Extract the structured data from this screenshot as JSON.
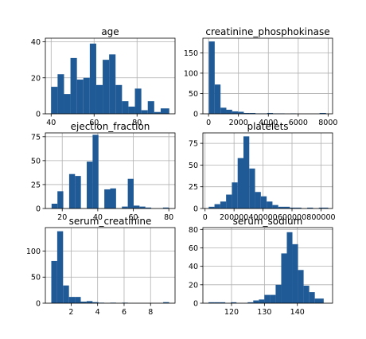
{
  "chart_data": [
    {
      "type": "bar",
      "title": "age",
      "xlabel": "",
      "ylabel": "",
      "bar_color": "#1f5a96",
      "grid": true,
      "xlim": [
        37.3,
        97.7
      ],
      "ylim": [
        0,
        42
      ],
      "xticks": [
        40,
        60,
        80
      ],
      "yticks": [
        0,
        20,
        40
      ],
      "bins": [
        [
          40,
          43,
          15
        ],
        [
          43,
          46,
          22
        ],
        [
          46,
          49,
          11
        ],
        [
          49,
          52,
          31
        ],
        [
          52,
          55,
          19
        ],
        [
          55,
          58,
          20
        ],
        [
          58,
          61,
          39
        ],
        [
          61,
          64,
          16
        ],
        [
          64,
          67,
          30
        ],
        [
          67,
          70,
          33
        ],
        [
          70,
          73,
          16
        ],
        [
          73,
          76,
          7
        ],
        [
          76,
          79,
          4
        ],
        [
          79,
          82,
          14
        ],
        [
          82,
          85,
          2
        ],
        [
          85,
          88,
          7
        ],
        [
          88,
          91,
          1
        ],
        [
          91,
          95,
          3
        ]
      ]
    },
    {
      "type": "bar",
      "title": "creatinine_phosphokinase",
      "xlabel": "",
      "ylabel": "",
      "bar_color": "#1f5a96",
      "grid": true,
      "xlim": [
        -380,
        8300
      ],
      "ylim": [
        0,
        186
      ],
      "xticks": [
        0,
        2000,
        4000,
        6000,
        8000
      ],
      "yticks": [
        0,
        50,
        100,
        150
      ],
      "bins": [
        [
          20,
          410,
          178
        ],
        [
          410,
          800,
          72
        ],
        [
          800,
          1190,
          15
        ],
        [
          1190,
          1580,
          10
        ],
        [
          1580,
          1970,
          6
        ],
        [
          1970,
          2360,
          5
        ],
        [
          2360,
          2750,
          2
        ],
        [
          2750,
          3140,
          2
        ],
        [
          3140,
          3530,
          1
        ],
        [
          3530,
          3920,
          1
        ],
        [
          3920,
          4310,
          2
        ],
        [
          4310,
          4700,
          1
        ],
        [
          4700,
          5090,
          1
        ],
        [
          5090,
          5480,
          0
        ],
        [
          5480,
          5870,
          1
        ],
        [
          5870,
          6260,
          0
        ],
        [
          6260,
          6650,
          0
        ],
        [
          6650,
          7040,
          0
        ],
        [
          7040,
          7430,
          0
        ],
        [
          7430,
          7861,
          2
        ]
      ]
    },
    {
      "type": "bar",
      "title": "ejection_fraction",
      "xlabel": "",
      "ylabel": "",
      "bar_color": "#1f5a96",
      "grid": true,
      "xlim": [
        10.5,
        83.5
      ],
      "ylim": [
        0,
        79
      ],
      "xticks": [
        20,
        40,
        60,
        80
      ],
      "yticks": [
        0,
        25,
        50,
        75
      ],
      "bins": [
        [
          14,
          17.3,
          5
        ],
        [
          17.3,
          20.6,
          18
        ],
        [
          20.6,
          23.9,
          0
        ],
        [
          23.9,
          27.2,
          36
        ],
        [
          27.2,
          30.5,
          34
        ],
        [
          30.5,
          33.8,
          0
        ],
        [
          33.8,
          37.1,
          49
        ],
        [
          37.1,
          40.4,
          77
        ],
        [
          40.4,
          43.7,
          0
        ],
        [
          43.7,
          47,
          20
        ],
        [
          47,
          50.3,
          21
        ],
        [
          50.3,
          53.6,
          0
        ],
        [
          53.6,
          56.9,
          2
        ],
        [
          56.9,
          60.2,
          31
        ],
        [
          60.2,
          63.5,
          3
        ],
        [
          63.5,
          66.8,
          2
        ],
        [
          66.8,
          70.1,
          1
        ],
        [
          70.1,
          73.4,
          0
        ],
        [
          73.4,
          76.7,
          0
        ],
        [
          76.7,
          80,
          1
        ]
      ]
    },
    {
      "type": "bar",
      "title": "platelets",
      "xlabel": "",
      "ylabel": "",
      "bar_color": "#1f5a96",
      "grid": true,
      "xlim": [
        -15000,
        880000
      ],
      "ylim": [
        0,
        87
      ],
      "xticks": [
        0,
        200000,
        400000,
        600000,
        800000
      ],
      "yticks": [
        0,
        25,
        50,
        75
      ],
      "bins": [
        [
          25100,
          65000,
          2
        ],
        [
          65000,
          105000,
          5
        ],
        [
          105000,
          145000,
          8
        ],
        [
          145000,
          185000,
          16
        ],
        [
          185000,
          225000,
          30
        ],
        [
          225000,
          265000,
          58
        ],
        [
          265000,
          305000,
          83
        ],
        [
          305000,
          345000,
          46
        ],
        [
          345000,
          385000,
          19
        ],
        [
          385000,
          425000,
          14
        ],
        [
          425000,
          465000,
          8
        ],
        [
          465000,
          505000,
          4
        ],
        [
          505000,
          545000,
          2
        ],
        [
          545000,
          585000,
          2
        ],
        [
          585000,
          625000,
          1
        ],
        [
          625000,
          665000,
          1
        ],
        [
          665000,
          705000,
          0
        ],
        [
          705000,
          745000,
          1
        ],
        [
          745000,
          785000,
          0
        ],
        [
          785000,
          850000,
          1
        ]
      ]
    },
    {
      "type": "bar",
      "title": "serum_creatinine",
      "xlabel": "",
      "ylabel": "",
      "bar_color": "#1f5a96",
      "grid": true,
      "xlim": [
        0.05,
        9.85
      ],
      "ylim": [
        0,
        145
      ],
      "xticks": [
        2,
        4,
        6,
        8
      ],
      "yticks": [
        0,
        50,
        100
      ],
      "bins": [
        [
          0.5,
          0.945,
          81
        ],
        [
          0.945,
          1.39,
          138
        ],
        [
          1.39,
          1.835,
          34
        ],
        [
          1.835,
          2.28,
          12
        ],
        [
          2.28,
          2.725,
          12
        ],
        [
          2.725,
          3.17,
          3
        ],
        [
          3.17,
          3.615,
          4
        ],
        [
          3.615,
          4.06,
          2
        ],
        [
          4.06,
          4.505,
          1
        ],
        [
          4.505,
          4.95,
          0
        ],
        [
          4.95,
          5.395,
          1
        ],
        [
          5.395,
          5.84,
          0
        ],
        [
          5.84,
          6.285,
          1
        ],
        [
          6.285,
          6.73,
          0
        ],
        [
          6.73,
          7.175,
          0
        ],
        [
          7.175,
          7.62,
          0
        ],
        [
          7.62,
          8.065,
          0
        ],
        [
          8.065,
          8.51,
          0
        ],
        [
          8.51,
          8.955,
          0
        ],
        [
          8.955,
          9.4,
          2
        ]
      ]
    },
    {
      "type": "bar",
      "title": "serum_sodium",
      "xlabel": "",
      "ylabel": "",
      "bar_color": "#1f5a96",
      "grid": true,
      "xlim": [
        111.3,
        150.7
      ],
      "ylim": [
        0,
        82
      ],
      "xticks": [
        120,
        130,
        140
      ],
      "yticks": [
        0,
        20,
        40,
        60,
        80
      ],
      "bins": [
        [
          113,
          114.7,
          1
        ],
        [
          114.7,
          116.4,
          1
        ],
        [
          116.4,
          118.1,
          1
        ],
        [
          118.1,
          119.8,
          0
        ],
        [
          119.8,
          121.5,
          1
        ],
        [
          121.5,
          123.2,
          0
        ],
        [
          123.2,
          124.9,
          0
        ],
        [
          124.9,
          126.6,
          1
        ],
        [
          126.6,
          128.3,
          3
        ],
        [
          128.3,
          130,
          4
        ],
        [
          130,
          131.7,
          9
        ],
        [
          131.7,
          133.4,
          9
        ],
        [
          133.4,
          135.1,
          20
        ],
        [
          135.1,
          136.8,
          54
        ],
        [
          136.8,
          138.5,
          77
        ],
        [
          138.5,
          140.2,
          64
        ],
        [
          140.2,
          141.9,
          36
        ],
        [
          141.9,
          143.6,
          19
        ],
        [
          143.6,
          145.3,
          12
        ],
        [
          145.3,
          148,
          5
        ]
      ]
    }
  ]
}
